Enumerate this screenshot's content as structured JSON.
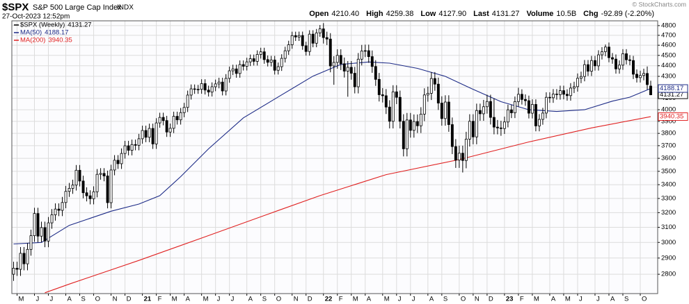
{
  "header": {
    "symbol": "$SPX",
    "name": "S&P 500 Large Cap Index",
    "exchange": "INDX",
    "date": "27-Oct-2023 12:52pm",
    "copyright": "© StockCharts.com",
    "quote": [
      {
        "label": "Open",
        "value": "4210.40"
      },
      {
        "label": "High",
        "value": "4259.38"
      },
      {
        "label": "Low",
        "value": "4127.90"
      },
      {
        "label": "Last",
        "value": "4131.27"
      },
      {
        "label": "Volume",
        "value": "10.5B"
      },
      {
        "label": "Chg",
        "value": "-92.89 (-2.20%)"
      }
    ]
  },
  "chart_data": {
    "type": "candlestick",
    "name": "$SPX (Weekly)",
    "up_color": "#ffffff",
    "down_color": "#000000",
    "log": true,
    "grid": true,
    "ylim": [
      2685,
      4850
    ],
    "yticks": [
      2800,
      2900,
      3000,
      3100,
      3200,
      3300,
      3400,
      3500,
      3600,
      3700,
      3800,
      3900,
      4000,
      4100,
      4200,
      4300,
      4400,
      4500,
      4600,
      4700,
      4800
    ],
    "xlim": [
      -0.5,
      185
    ],
    "xticks": [
      {
        "value": 1,
        "label": "M"
      },
      {
        "value": 6,
        "label": "J"
      },
      {
        "value": 10,
        "label": "J"
      },
      {
        "value": 15,
        "label": "A"
      },
      {
        "value": 19,
        "label": "S"
      },
      {
        "value": 23,
        "label": "O"
      },
      {
        "value": 28,
        "label": "N"
      },
      {
        "value": 32,
        "label": "D"
      },
      {
        "value": 37,
        "label": "21"
      },
      {
        "value": 41,
        "label": "F"
      },
      {
        "value": 45,
        "label": "M"
      },
      {
        "value": 49,
        "label": "A"
      },
      {
        "value": 54,
        "label": "M"
      },
      {
        "value": 58,
        "label": "J"
      },
      {
        "value": 62,
        "label": "J"
      },
      {
        "value": 67,
        "label": "A"
      },
      {
        "value": 71,
        "label": "S"
      },
      {
        "value": 75,
        "label": "O"
      },
      {
        "value": 80,
        "label": "N"
      },
      {
        "value": 84,
        "label": "D"
      },
      {
        "value": 89,
        "label": "22"
      },
      {
        "value": 93,
        "label": "F"
      },
      {
        "value": 97,
        "label": "M"
      },
      {
        "value": 101,
        "label": "A"
      },
      {
        "value": 106,
        "label": "M"
      },
      {
        "value": 110,
        "label": "J"
      },
      {
        "value": 114,
        "label": "J"
      },
      {
        "value": 119,
        "label": "A"
      },
      {
        "value": 123,
        "label": "S"
      },
      {
        "value": 128,
        "label": "O"
      },
      {
        "value": 132,
        "label": "N"
      },
      {
        "value": 136,
        "label": "D"
      },
      {
        "value": 141,
        "label": "23"
      },
      {
        "value": 145,
        "label": "F"
      },
      {
        "value": 149,
        "label": "M"
      },
      {
        "value": 154,
        "label": "A"
      },
      {
        "value": 158,
        "label": "M"
      },
      {
        "value": 162,
        "label": "J"
      },
      {
        "value": 167,
        "label": "J"
      },
      {
        "value": 171,
        "label": "A"
      },
      {
        "value": 175,
        "label": "S"
      },
      {
        "value": 180,
        "label": "O"
      }
    ],
    "open": [
      2800,
      2837,
      2830,
      2930,
      2864,
      2955,
      3044,
      3194,
      3041,
      3098,
      3009,
      3130,
      3185,
      3225,
      3216,
      3271,
      3351,
      3373,
      3397,
      3508,
      3427,
      3341,
      3319,
      3298,
      3348,
      3477,
      3484,
      3465,
      3270,
      3510,
      3585,
      3558,
      3638,
      3699,
      3663,
      3709,
      3703,
      3756,
      3824,
      3768,
      3841,
      3714,
      3887,
      3934,
      3907,
      3811,
      3842,
      3943,
      3913,
      3975,
      4020,
      4129,
      4185,
      4180,
      4181,
      4233,
      4174,
      4156,
      4204,
      4230,
      4247,
      4166,
      4281,
      4352,
      4370,
      4327,
      4411,
      4395,
      4437,
      4468,
      4442,
      4509,
      4535,
      4459,
      4433,
      4455,
      4357,
      4391,
      4471,
      4545,
      4605,
      4697,
      4683,
      4698,
      4595,
      4538,
      4712,
      4620,
      4725,
      4766,
      4677,
      4662,
      4398,
      4432,
      4500,
      4419,
      4349,
      4385,
      4329,
      4204,
      4463,
      4543,
      4546,
      4488,
      4393,
      4272,
      4132,
      4123,
      4023,
      3901,
      4158,
      4109,
      3901,
      3675,
      3912,
      3825,
      3899,
      3863,
      3962,
      4130,
      4145,
      4280,
      4228,
      4058,
      3924,
      4067,
      3873,
      3693,
      3586,
      3640,
      3583,
      3753,
      3901,
      3771,
      3993,
      3965,
      4026,
      4072,
      3934,
      3852,
      3845,
      3840,
      3895,
      3999,
      3973,
      4071,
      4136,
      4090,
      4079,
      3970,
      4046,
      3862,
      3917,
      3971,
      4109,
      4105,
      4138,
      4133,
      4169,
      4136,
      4124,
      4192,
      4205,
      4282,
      4299,
      4410,
      4348,
      4450,
      4399,
      4505,
      4536,
      4582,
      4478,
      4464,
      4370,
      4406,
      4516,
      4457,
      4450,
      4320,
      4288,
      4308,
      4327,
      4210.4
    ],
    "high": [
      2877,
      2877,
      2970,
      2970,
      2995,
      3084,
      3234,
      3234,
      3138,
      3138,
      3170,
      3225,
      3265,
      3265,
      3311,
      3391,
      3413,
      3437,
      3548,
      3548,
      3467,
      3381,
      3359,
      3388,
      3517,
      3524,
      3524,
      3505,
      3550,
      3625,
      3625,
      3678,
      3739,
      3739,
      3749,
      3749,
      3796,
      3864,
      3864,
      3881,
      3881,
      3927,
      3974,
      3974,
      3947,
      3882,
      3983,
      3983,
      4015,
      4060,
      4169,
      4225,
      4225,
      4221,
      4273,
      4273,
      4214,
      4244,
      4270,
      4287,
      4287,
      4321,
      4392,
      4410,
      4410,
      4451,
      4451,
      4477,
      4508,
      4508,
      4549,
      4575,
      4575,
      4499,
      4495,
      4495,
      4431,
      4511,
      4585,
      4645,
      4737,
      4737,
      4738,
      4738,
      4635,
      4752,
      4752,
      4765,
      4806,
      4826,
      4737,
      4722,
      4492,
      4560,
      4560,
      4479,
      4445,
      4445,
      4389,
      4523,
      4603,
      4606,
      4606,
      4548,
      4453,
      4332,
      4192,
      4183,
      4083,
      4218,
      4218,
      4169,
      3961,
      3972,
      3972,
      3959,
      3959,
      4022,
      4190,
      4205,
      4340,
      4340,
      4288,
      4118,
      4127,
      4127,
      3933,
      3753,
      3700,
      3700,
      3813,
      3961,
      3961,
      4053,
      4053,
      4086,
      4132,
      4132,
      4100,
      3912,
      3905,
      3940,
      4044,
      4044,
      4116,
      4195,
      4181,
      4135,
      4124,
      4091,
      4091,
      3962,
      4016,
      4154,
      4154,
      4183,
      4183,
      4214,
      4214,
      4181,
      4237,
      4250,
      4327,
      4344,
      4455,
      4455,
      4495,
      4495,
      4550,
      4581,
      4607,
      4627,
      4523,
      4509,
      4451,
      4561,
      4561,
      4502,
      4495,
      4365,
      4353,
      4372,
      4393,
      4259.38
    ],
    "low": [
      2760,
      2790,
      2790,
      2824,
      2824,
      2915,
      3004,
      3001,
      3001,
      2969,
      2969,
      3090,
      3145,
      3176,
      3176,
      3231,
      3311,
      3333,
      3357,
      3387,
      3301,
      3279,
      3258,
      3258,
      3308,
      3437,
      3425,
      3230,
      3230,
      3470,
      3518,
      3518,
      3598,
      3623,
      3623,
      3663,
      3663,
      3716,
      3728,
      3728,
      3674,
      3674,
      3847,
      3867,
      3771,
      3771,
      3802,
      3873,
      3873,
      3935,
      3980,
      4089,
      4140,
      4140,
      4141,
      4134,
      4116,
      4116,
      4164,
      4190,
      4126,
      4126,
      4241,
      4312,
      4287,
      4287,
      4355,
      4355,
      4397,
      4402,
      4402,
      4469,
      4419,
      4393,
      4393,
      4317,
      4317,
      4351,
      4431,
      4505,
      4565,
      4643,
      4643,
      4555,
      4498,
      4498,
      4580,
      4580,
      4685,
      4617,
      4602,
      4338,
      4222,
      4372,
      4359,
      4289,
      4114,
      4269,
      4144,
      4144,
      4403,
      4483,
      4428,
      4333,
      4212,
      4072,
      4063,
      3963,
      3841,
      3841,
      4049,
      3841,
      3615,
      3615,
      3765,
      3765,
      3803,
      3803,
      3902,
      4070,
      4085,
      4168,
      3998,
      3864,
      3864,
      3813,
      3633,
      3526,
      3526,
      3491,
      3523,
      3693,
      3711,
      3711,
      3905,
      3905,
      3966,
      3874,
      3792,
      3792,
      3780,
      3795,
      3850,
      3928,
      3928,
      4026,
      4045,
      4034,
      3925,
      3925,
      3817,
      3817,
      3872,
      3926,
      4060,
      4060,
      4088,
      4088,
      4091,
      4079,
      4079,
      4147,
      4160,
      4237,
      4254,
      4303,
      4303,
      4354,
      4354,
      4460,
      4491,
      4433,
      4419,
      4325,
      4325,
      4361,
      4412,
      4405,
      4275,
      4243,
      4243,
      4263,
      4179,
      4127.9
    ],
    "close": [
      2837,
      2830,
      2930,
      2864,
      2955,
      3044,
      3194,
      3041,
      3098,
      3009,
      3130,
      3185,
      3225,
      3216,
      3271,
      3351,
      3373,
      3397,
      3508,
      3427,
      3341,
      3319,
      3298,
      3348,
      3477,
      3484,
      3465,
      3270,
      3510,
      3585,
      3558,
      3638,
      3699,
      3663,
      3709,
      3703,
      3756,
      3824,
      3768,
      3841,
      3714,
      3887,
      3934,
      3907,
      3811,
      3842,
      3943,
      3913,
      3975,
      4020,
      4129,
      4185,
      4180,
      4181,
      4233,
      4174,
      4156,
      4204,
      4230,
      4247,
      4166,
      4281,
      4352,
      4370,
      4327,
      4411,
      4395,
      4437,
      4468,
      4442,
      4509,
      4535,
      4459,
      4433,
      4455,
      4357,
      4391,
      4471,
      4545,
      4605,
      4697,
      4683,
      4698,
      4595,
      4538,
      4712,
      4620,
      4725,
      4766,
      4677,
      4662,
      4398,
      4432,
      4500,
      4419,
      4349,
      4385,
      4329,
      4204,
      4463,
      4543,
      4546,
      4488,
      4393,
      4272,
      4132,
      4123,
      4023,
      3901,
      4158,
      4109,
      3901,
      3675,
      3912,
      3825,
      3899,
      3863,
      3962,
      4130,
      4145,
      4280,
      4228,
      4058,
      3924,
      4067,
      3873,
      3693,
      3586,
      3640,
      3583,
      3753,
      3901,
      3771,
      3993,
      3965,
      4026,
      4072,
      3934,
      3852,
      3845,
      3840,
      3895,
      3999,
      3973,
      4071,
      4136,
      4090,
      4079,
      3970,
      4046,
      3862,
      3917,
      3971,
      4109,
      4105,
      4138,
      4133,
      4169,
      4136,
      4124,
      4192,
      4205,
      4282,
      4299,
      4410,
      4348,
      4450,
      4399,
      4505,
      4536,
      4582,
      4478,
      4464,
      4370,
      4406,
      4516,
      4457,
      4450,
      4320,
      4288,
      4308,
      4327,
      4224,
      4131.27
    ],
    "series": [
      {
        "name": "MA(50)",
        "color": "#1c2a86",
        "x": [
          0,
          8,
          16,
          28,
          36,
          42,
          48,
          56,
          66,
          76,
          86,
          94,
          102,
          108,
          116,
          124,
          132,
          140,
          148,
          156,
          164,
          172,
          177,
          183
        ],
        "values": [
          2990,
          3000,
          3113,
          3210,
          3260,
          3320,
          3460,
          3675,
          3930,
          4112,
          4302,
          4413,
          4436,
          4425,
          4375,
          4300,
          4180,
          4070,
          4000,
          3985,
          4000,
          4075,
          4110,
          4188.17
        ]
      },
      {
        "name": "MA(200)",
        "color": "#e02020",
        "x": [
          9,
          16,
          36,
          56,
          76,
          88,
          107,
          128,
          148,
          166,
          183
        ],
        "values": [
          2690,
          2741,
          2885,
          3045,
          3215,
          3320,
          3475,
          3590,
          3730,
          3845,
          3940.35
        ]
      }
    ]
  }
}
